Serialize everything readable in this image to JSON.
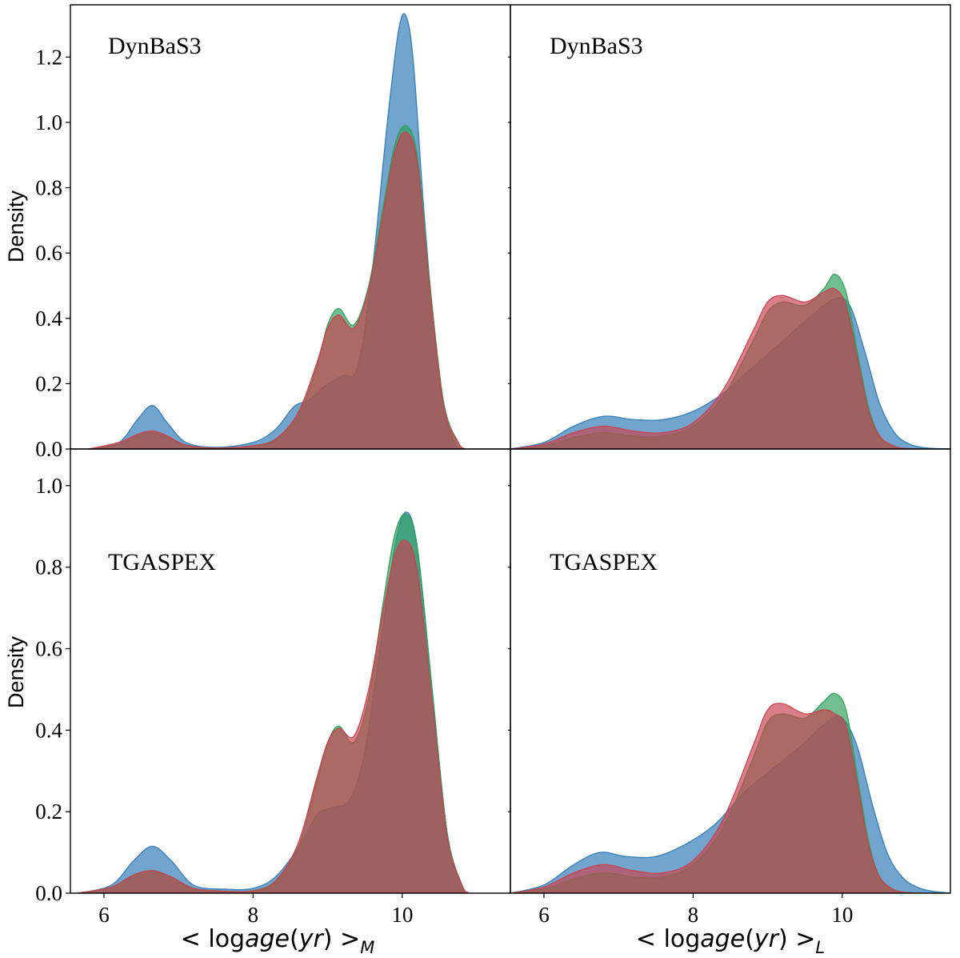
{
  "figure": {
    "ylabel": "Density",
    "xlabel_left": {
      "pre": "< log",
      "italic": "age",
      "mid": "(",
      "italic2": "yr",
      "post": ") >",
      "sub": "M"
    },
    "xlabel_right": {
      "pre": "< log",
      "italic": "age",
      "mid": "(",
      "italic2": "yr",
      "post": ") >",
      "sub": "L"
    }
  },
  "colors": {
    "blue": "#2f7bb5",
    "green": "#2ea05a",
    "red": "#c8434f"
  },
  "chart_data": [
    {
      "type": "area",
      "title": "DynBaS3",
      "xlabel": "< logage(yr) >_M",
      "ylabel": "Density",
      "xlim": [
        5.55,
        11.45
      ],
      "ylim": [
        0,
        1.36
      ],
      "yticks": [
        0.0,
        0.2,
        0.4,
        0.6,
        0.8,
        1.0,
        1.2
      ],
      "xticks": [
        6,
        8,
        10
      ],
      "series": [
        {
          "name": "blue",
          "x": [
            5.8,
            6.2,
            6.45,
            6.65,
            6.85,
            7.1,
            7.5,
            8.0,
            8.3,
            8.55,
            8.75,
            8.95,
            9.2,
            9.4,
            9.6,
            9.8,
            9.95,
            10.05,
            10.15,
            10.3,
            10.5,
            10.7,
            10.85
          ],
          "values": [
            0.0,
            0.02,
            0.09,
            0.133,
            0.08,
            0.02,
            0.005,
            0.02,
            0.06,
            0.13,
            0.15,
            0.19,
            0.225,
            0.25,
            0.55,
            1.0,
            1.28,
            1.325,
            1.18,
            0.7,
            0.2,
            0.02,
            0.0
          ]
        },
        {
          "name": "green",
          "x": [
            5.8,
            6.2,
            6.45,
            6.65,
            6.85,
            7.1,
            7.5,
            8.0,
            8.3,
            8.6,
            8.85,
            9.0,
            9.15,
            9.35,
            9.55,
            9.75,
            9.9,
            10.05,
            10.2,
            10.35,
            10.55,
            10.75,
            10.85
          ],
          "values": [
            0.0,
            0.015,
            0.04,
            0.05,
            0.035,
            0.012,
            0.003,
            0.01,
            0.03,
            0.1,
            0.25,
            0.38,
            0.43,
            0.38,
            0.5,
            0.75,
            0.93,
            0.99,
            0.9,
            0.55,
            0.15,
            0.02,
            0.0
          ]
        },
        {
          "name": "red",
          "x": [
            5.8,
            6.2,
            6.45,
            6.65,
            6.85,
            7.1,
            7.5,
            8.0,
            8.3,
            8.6,
            8.85,
            9.0,
            9.15,
            9.35,
            9.55,
            9.75,
            9.9,
            10.05,
            10.2,
            10.35,
            10.55,
            10.75,
            10.85
          ],
          "values": [
            0.0,
            0.02,
            0.045,
            0.055,
            0.04,
            0.012,
            0.003,
            0.01,
            0.03,
            0.11,
            0.26,
            0.37,
            0.41,
            0.37,
            0.49,
            0.73,
            0.91,
            0.97,
            0.88,
            0.53,
            0.14,
            0.02,
            0.0
          ]
        }
      ]
    },
    {
      "type": "area",
      "title": "DynBaS3",
      "xlabel": "< logage(yr) >_L",
      "ylabel": "",
      "xlim": [
        5.55,
        11.45
      ],
      "ylim": [
        0,
        1.36
      ],
      "yticks": [
        0.0,
        0.2,
        0.4,
        0.6,
        0.8,
        1.0,
        1.2
      ],
      "xticks": [
        6,
        8,
        10
      ],
      "series": [
        {
          "name": "blue",
          "x": [
            5.55,
            6.0,
            6.4,
            6.8,
            7.2,
            7.6,
            8.0,
            8.4,
            8.8,
            9.2,
            9.6,
            9.9,
            10.1,
            10.3,
            10.5,
            10.7,
            10.9,
            11.1,
            11.3,
            11.45
          ],
          "values": [
            0.0,
            0.02,
            0.07,
            0.1,
            0.09,
            0.09,
            0.115,
            0.17,
            0.25,
            0.33,
            0.41,
            0.46,
            0.44,
            0.3,
            0.14,
            0.05,
            0.015,
            0.004,
            0.001,
            0.0
          ]
        },
        {
          "name": "green",
          "x": [
            5.55,
            6.0,
            6.4,
            6.8,
            7.2,
            7.6,
            8.0,
            8.4,
            8.8,
            9.0,
            9.2,
            9.5,
            9.75,
            9.9,
            10.05,
            10.2,
            10.35,
            10.5,
            10.7,
            10.9,
            11.1
          ],
          "values": [
            0.0,
            0.01,
            0.035,
            0.05,
            0.04,
            0.04,
            0.07,
            0.16,
            0.33,
            0.42,
            0.45,
            0.44,
            0.49,
            0.535,
            0.48,
            0.3,
            0.13,
            0.04,
            0.008,
            0.001,
            0.0
          ]
        },
        {
          "name": "red",
          "x": [
            5.55,
            6.0,
            6.4,
            6.8,
            7.2,
            7.6,
            8.0,
            8.4,
            8.8,
            9.0,
            9.2,
            9.5,
            9.75,
            9.9,
            10.05,
            10.2,
            10.35,
            10.5,
            10.7,
            10.9,
            11.1
          ],
          "values": [
            0.0,
            0.015,
            0.05,
            0.07,
            0.055,
            0.05,
            0.08,
            0.18,
            0.36,
            0.45,
            0.47,
            0.45,
            0.48,
            0.49,
            0.44,
            0.28,
            0.12,
            0.04,
            0.008,
            0.001,
            0.0
          ]
        }
      ]
    },
    {
      "type": "area",
      "title": "TGASPEX",
      "xlabel": "< logage(yr) >_M",
      "ylabel": "Density",
      "xlim": [
        5.55,
        11.45
      ],
      "ylim": [
        0,
        1.09
      ],
      "yticks": [
        0.0,
        0.2,
        0.4,
        0.6,
        0.8,
        1.0
      ],
      "xticks": [
        6,
        8,
        10
      ],
      "series": [
        {
          "name": "blue",
          "x": [
            5.65,
            6.1,
            6.4,
            6.65,
            6.9,
            7.2,
            7.6,
            8.0,
            8.3,
            8.6,
            8.85,
            9.05,
            9.3,
            9.5,
            9.7,
            9.9,
            10.05,
            10.2,
            10.4,
            10.6,
            10.8,
            10.9
          ],
          "values": [
            0.0,
            0.02,
            0.08,
            0.115,
            0.08,
            0.02,
            0.01,
            0.012,
            0.04,
            0.11,
            0.19,
            0.21,
            0.23,
            0.35,
            0.6,
            0.85,
            0.935,
            0.85,
            0.5,
            0.15,
            0.02,
            0.0
          ]
        },
        {
          "name": "green",
          "x": [
            5.65,
            6.1,
            6.4,
            6.65,
            6.9,
            7.2,
            7.6,
            8.0,
            8.3,
            8.6,
            8.85,
            9.0,
            9.15,
            9.35,
            9.55,
            9.75,
            9.9,
            10.05,
            10.2,
            10.4,
            10.6,
            10.8,
            10.9
          ],
          "values": [
            0.0,
            0.015,
            0.045,
            0.055,
            0.04,
            0.012,
            0.005,
            0.006,
            0.03,
            0.11,
            0.27,
            0.37,
            0.41,
            0.37,
            0.48,
            0.72,
            0.88,
            0.93,
            0.85,
            0.5,
            0.15,
            0.02,
            0.0
          ]
        },
        {
          "name": "red",
          "x": [
            5.65,
            6.1,
            6.4,
            6.65,
            6.9,
            7.2,
            7.6,
            8.0,
            8.3,
            8.6,
            8.85,
            9.0,
            9.15,
            9.35,
            9.55,
            9.75,
            9.9,
            10.05,
            10.2,
            10.4,
            10.6,
            10.8,
            10.9
          ],
          "values": [
            0.0,
            0.015,
            0.045,
            0.055,
            0.04,
            0.012,
            0.005,
            0.006,
            0.03,
            0.12,
            0.28,
            0.37,
            0.405,
            0.385,
            0.5,
            0.7,
            0.83,
            0.865,
            0.79,
            0.47,
            0.14,
            0.02,
            0.0
          ]
        }
      ]
    },
    {
      "type": "area",
      "title": "TGASPEX",
      "xlabel": "< logage(yr) >_L",
      "ylabel": "",
      "xlim": [
        5.55,
        11.45
      ],
      "ylim": [
        0,
        1.09
      ],
      "yticks": [
        0.0,
        0.2,
        0.4,
        0.6,
        0.8,
        1.0
      ],
      "xticks": [
        6,
        8,
        10
      ],
      "series": [
        {
          "name": "blue",
          "x": [
            5.55,
            6.0,
            6.4,
            6.75,
            7.1,
            7.5,
            7.9,
            8.3,
            8.7,
            9.1,
            9.5,
            9.8,
            10.0,
            10.2,
            10.4,
            10.6,
            10.8,
            11.0,
            11.2,
            11.4,
            11.45
          ],
          "values": [
            0.0,
            0.02,
            0.07,
            0.1,
            0.09,
            0.09,
            0.12,
            0.17,
            0.25,
            0.31,
            0.37,
            0.42,
            0.43,
            0.36,
            0.22,
            0.1,
            0.04,
            0.015,
            0.005,
            0.001,
            0.0
          ]
        },
        {
          "name": "green",
          "x": [
            5.55,
            6.0,
            6.4,
            6.8,
            7.2,
            7.6,
            8.0,
            8.4,
            8.8,
            9.0,
            9.2,
            9.5,
            9.75,
            9.9,
            10.05,
            10.2,
            10.35,
            10.5,
            10.7,
            10.9,
            11.1
          ],
          "values": [
            0.0,
            0.01,
            0.035,
            0.05,
            0.04,
            0.04,
            0.07,
            0.16,
            0.33,
            0.42,
            0.44,
            0.43,
            0.47,
            0.49,
            0.45,
            0.29,
            0.13,
            0.04,
            0.008,
            0.001,
            0.0
          ]
        },
        {
          "name": "red",
          "x": [
            5.55,
            6.0,
            6.4,
            6.8,
            7.2,
            7.6,
            8.0,
            8.4,
            8.8,
            9.0,
            9.2,
            9.5,
            9.75,
            9.9,
            10.05,
            10.2,
            10.35,
            10.5,
            10.7,
            10.9,
            11.1
          ],
          "values": [
            0.0,
            0.015,
            0.05,
            0.07,
            0.055,
            0.05,
            0.08,
            0.18,
            0.36,
            0.45,
            0.465,
            0.44,
            0.45,
            0.44,
            0.41,
            0.27,
            0.12,
            0.04,
            0.008,
            0.001,
            0.0
          ]
        }
      ]
    }
  ]
}
